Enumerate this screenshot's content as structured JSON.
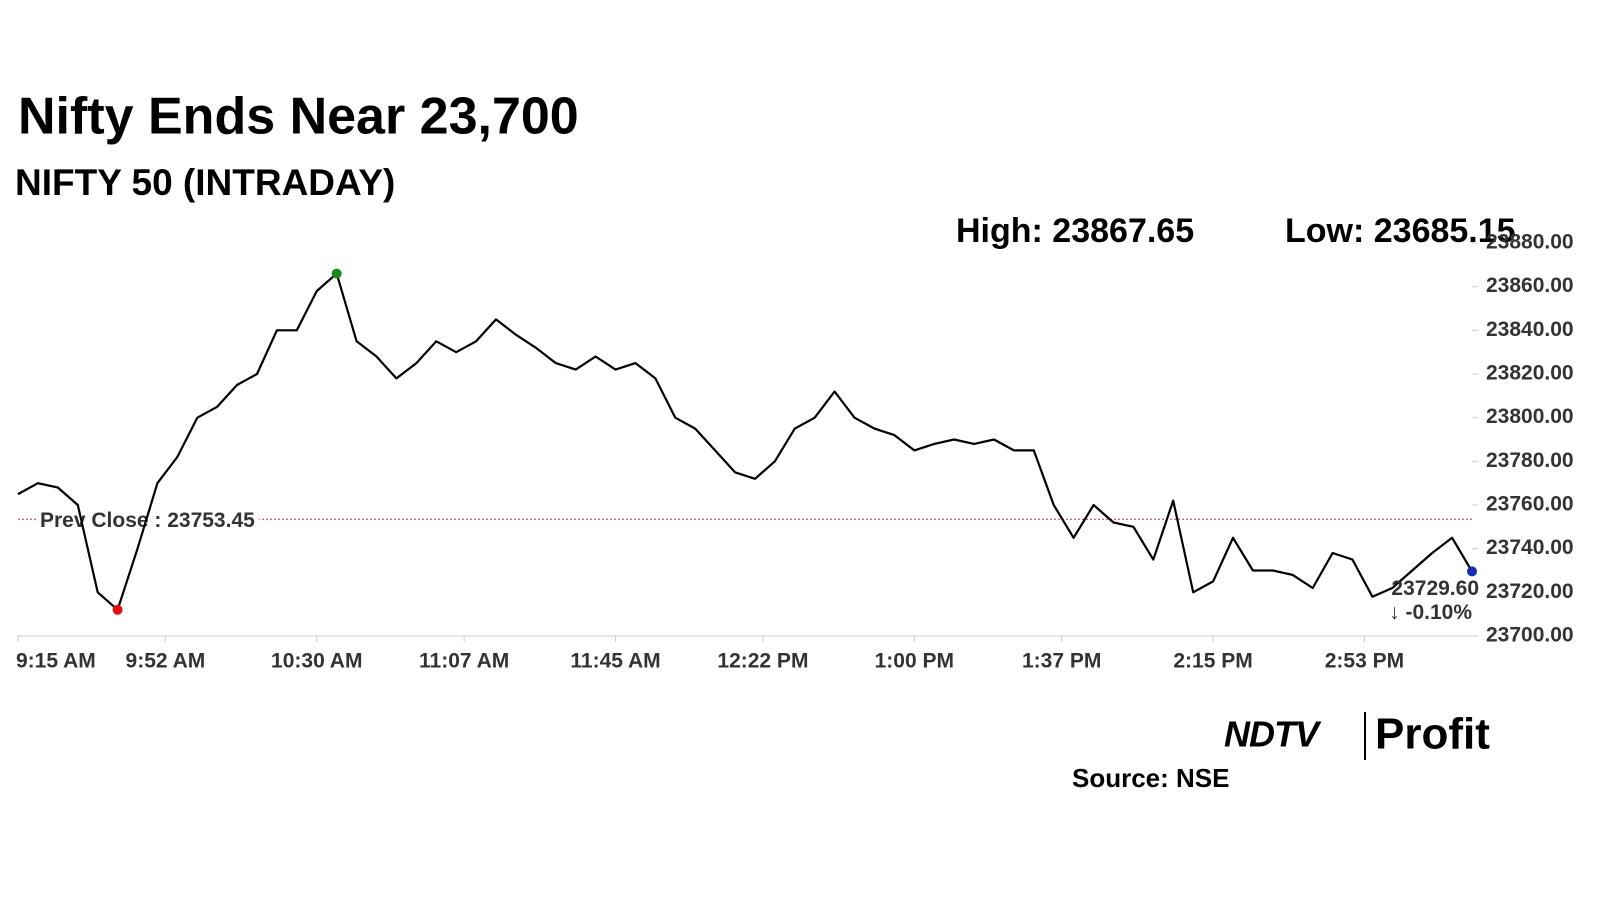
{
  "chart_data": {
    "type": "line",
    "title": "Nifty Ends Near 23,700",
    "subtitle": "NIFTY 50 (INTRADAY)",
    "high_label": "High: 23867.65",
    "low_label": "Low: 23685.15",
    "x": [
      "9:15 AM",
      "9:20 AM",
      "9:25 AM",
      "9:30 AM",
      "9:35 AM",
      "9:40 AM",
      "9:45 AM",
      "9:50 AM",
      "9:55 AM",
      "10:00 AM",
      "10:05 AM",
      "10:10 AM",
      "10:15 AM",
      "10:20 AM",
      "10:25 AM",
      "10:30 AM",
      "10:35 AM",
      "10:40 AM",
      "10:45 AM",
      "10:50 AM",
      "10:55 AM",
      "11:00 AM",
      "11:05 AM",
      "11:10 AM",
      "11:15 AM",
      "11:20 AM",
      "11:25 AM",
      "11:30 AM",
      "11:35 AM",
      "11:40 AM",
      "11:45 AM",
      "11:50 AM",
      "11:55 AM",
      "12:00 PM",
      "12:05 PM",
      "12:10 PM",
      "12:15 PM",
      "12:20 PM",
      "12:25 PM",
      "12:30 PM",
      "12:35 PM",
      "12:40 PM",
      "12:45 PM",
      "12:50 PM",
      "12:55 PM",
      "1:00 PM",
      "1:05 PM",
      "1:10 PM",
      "1:15 PM",
      "1:20 PM",
      "1:25 PM",
      "1:30 PM",
      "1:35 PM",
      "1:40 PM",
      "1:45 PM",
      "1:50 PM",
      "1:55 PM",
      "2:00 PM",
      "2:05 PM",
      "2:10 PM",
      "2:15 PM",
      "2:20 PM",
      "2:25 PM",
      "2:30 PM",
      "2:35 PM",
      "2:40 PM",
      "2:45 PM",
      "2:50 PM",
      "2:55 PM",
      "3:00 PM",
      "3:05 PM",
      "3:10 PM",
      "3:15 PM",
      "3:20 PM"
    ],
    "series": [
      {
        "name": "NIFTY 50",
        "color": "#000000",
        "values": [
          23765,
          23770,
          23768,
          23760,
          23720,
          23712,
          23740,
          23770,
          23782,
          23800,
          23805,
          23815,
          23820,
          23840,
          23840,
          23858,
          23866,
          23835,
          23828,
          23818,
          23825,
          23835,
          23830,
          23835,
          23845,
          23838,
          23832,
          23825,
          23822,
          23828,
          23822,
          23825,
          23818,
          23800,
          23795,
          23785,
          23775,
          23772,
          23780,
          23795,
          23800,
          23812,
          23800,
          23795,
          23792,
          23785,
          23788,
          23790,
          23788,
          23790,
          23785,
          23785,
          23760,
          23745,
          23760,
          23752,
          23750,
          23735,
          23762,
          23720,
          23725,
          23745,
          23730,
          23730,
          23728,
          23722,
          23738,
          23735,
          23718,
          23722,
          23730,
          23738,
          23745,
          23729.6
        ]
      }
    ],
    "last_value_label": "23729.60",
    "change_label": "↓ -0.10%",
    "reference_line": {
      "label": "Prev Close : 23753.45",
      "value": 23753.45,
      "color": "#d32f2f"
    },
    "marker_colors": {
      "high": "#1a8a1a",
      "low": "#e01010",
      "last": "#1a2fb0"
    },
    "xlim": [
      "9:15 AM",
      "3:20 PM"
    ],
    "xticks": [
      "9:15 AM",
      "9:52 AM",
      "10:30 AM",
      "11:07 AM",
      "11:45 AM",
      "12:22 PM",
      "1:00 PM",
      "1:37 PM",
      "2:15 PM",
      "2:53 PM"
    ],
    "ylim": [
      23700,
      23880
    ],
    "yticks": [
      {
        "value": 23700,
        "label": "23700.00"
      },
      {
        "value": 23720,
        "label": "23720.00"
      },
      {
        "value": 23740,
        "label": "23740.00"
      },
      {
        "value": 23760,
        "label": "23760.00"
      },
      {
        "value": 23780,
        "label": "23780.00"
      },
      {
        "value": 23800,
        "label": "23800.00"
      },
      {
        "value": 23820,
        "label": "23820.00"
      },
      {
        "value": 23840,
        "label": "23840.00"
      },
      {
        "value": 23860,
        "label": "23860.00"
      },
      {
        "value": 23880,
        "label": "23880.00"
      }
    ],
    "grid": false
  },
  "logo": {
    "left": "NDTV",
    "right": "Profit"
  },
  "source": "Source: NSE"
}
